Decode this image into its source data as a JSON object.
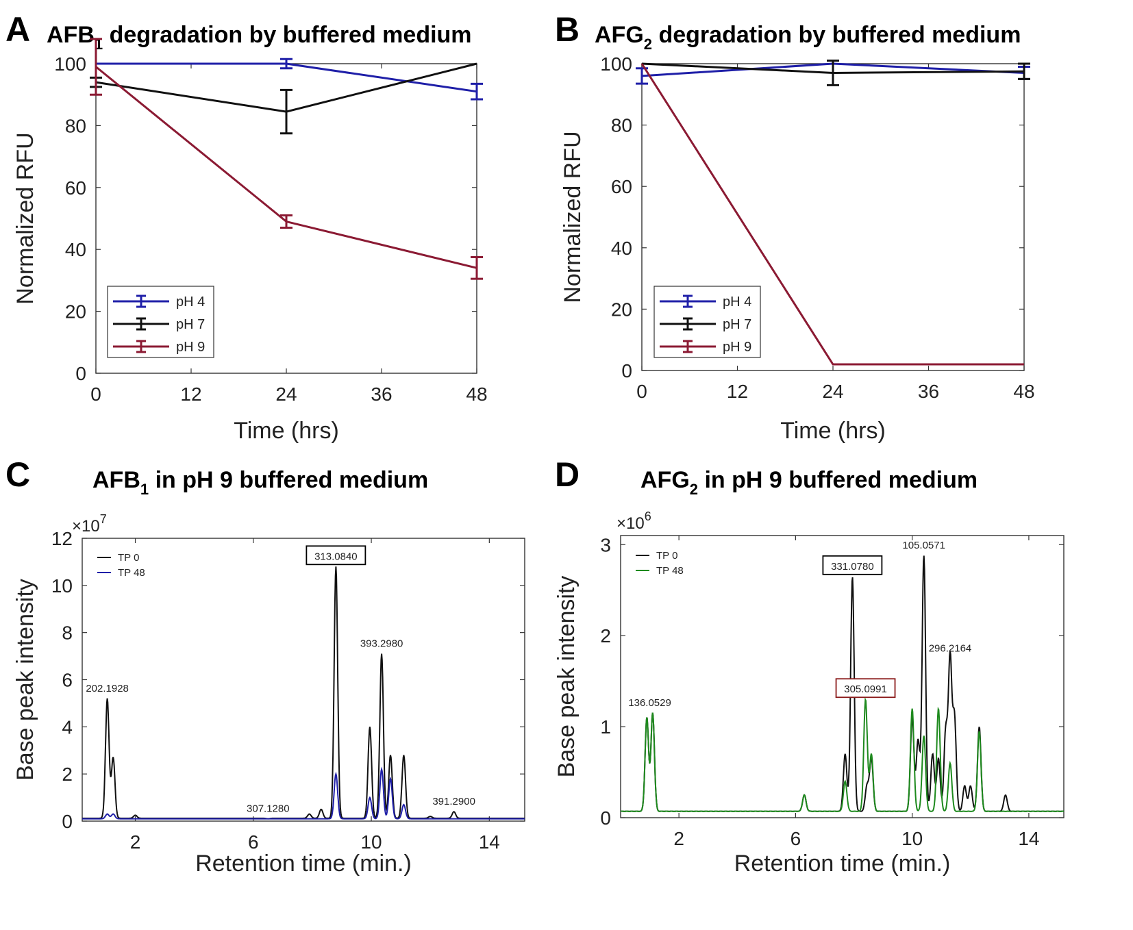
{
  "chart_data": [
    {
      "panel": "A",
      "type": "line",
      "title_main": "AFB",
      "title_sub": "1",
      "title_rest": " degradation by buffered medium",
      "xlabel": "Time (hrs)",
      "ylabel": "Normalized RFU",
      "xlim": [
        0,
        48
      ],
      "ylim": [
        0,
        100
      ],
      "xticks": [
        0,
        12,
        24,
        36,
        48
      ],
      "yticks": [
        0,
        20,
        40,
        60,
        80,
        100
      ],
      "x": [
        0,
        24,
        48
      ],
      "series": [
        {
          "name": "pH 4",
          "color": "#1f1fa8",
          "values": [
            100,
            100,
            91
          ],
          "err": [
            0,
            1.5,
            2.5
          ]
        },
        {
          "name": "pH 7",
          "color": "#111111",
          "values": [
            94,
            84.5,
            100
          ],
          "err": [
            1.5,
            7,
            0
          ]
        },
        {
          "name": "pH 9",
          "color": "#8b1a33",
          "values": [
            99,
            49,
            34
          ],
          "err": [
            9,
            2,
            3.5
          ]
        }
      ],
      "legend_position": "bottom-left"
    },
    {
      "panel": "B",
      "type": "line",
      "title_main": "AFG",
      "title_sub": "2",
      "title_rest": " degradation by buffered medium",
      "xlabel": "Time (hrs)",
      "ylabel": "Normalized RFU",
      "xlim": [
        0,
        48
      ],
      "ylim": [
        0,
        100
      ],
      "xticks": [
        0,
        12,
        24,
        36,
        48
      ],
      "yticks": [
        0,
        20,
        40,
        60,
        80,
        100
      ],
      "x": [
        0,
        24,
        48
      ],
      "series": [
        {
          "name": "pH 4",
          "color": "#1f1fa8",
          "values": [
            96,
            100,
            97
          ],
          "err": [
            2.5,
            0,
            2
          ]
        },
        {
          "name": "pH 7",
          "color": "#111111",
          "values": [
            100,
            97,
            97.5
          ],
          "err": [
            0,
            4,
            2.5
          ]
        },
        {
          "name": "pH 9",
          "color": "#8b1a33",
          "values": [
            100,
            2,
            2
          ],
          "err": [
            0,
            0,
            0
          ]
        }
      ],
      "legend_position": "bottom-left"
    },
    {
      "panel": "C",
      "type": "line",
      "title_main": "AFB",
      "title_sub": "1",
      "title_rest": " in pH 9 buffered medium",
      "xlabel": "Retention time (min.)",
      "ylabel": "Base peak intensity",
      "exponent_base": "×10",
      "exponent_power": "7",
      "xlim": [
        0.2,
        15.2
      ],
      "ylim": [
        0,
        12
      ],
      "xticks": [
        2,
        6,
        10,
        14
      ],
      "yticks": [
        0,
        2,
        4,
        6,
        8,
        10,
        12
      ],
      "legend_position": "top-left",
      "baseline": {
        "TP 0": 0.12,
        "TP 48": 0.1
      },
      "series": [
        {
          "name": "TP 0",
          "color": "#111111",
          "peaks": [
            [
              1.05,
              5.2
            ],
            [
              1.25,
              2.7
            ],
            [
              2.0,
              0.25
            ],
            [
              6.5,
              0.1
            ],
            [
              7.9,
              0.3
            ],
            [
              8.3,
              0.5
            ],
            [
              8.8,
              10.8
            ],
            [
              9.95,
              4.0
            ],
            [
              10.35,
              7.1
            ],
            [
              10.65,
              2.8
            ],
            [
              11.1,
              2.8
            ],
            [
              12.0,
              0.2
            ],
            [
              12.8,
              0.4
            ]
          ]
        },
        {
          "name": "TP 48",
          "color": "#1f1fa8",
          "peaks": [
            [
              1.05,
              0.3
            ],
            [
              1.25,
              0.3
            ],
            [
              8.8,
              2.0
            ],
            [
              9.95,
              1.0
            ],
            [
              10.35,
              2.2
            ],
            [
              10.65,
              1.8
            ],
            [
              11.1,
              0.7
            ]
          ]
        }
      ],
      "annotations": [
        {
          "label": "202.1928",
          "x": 1.05,
          "y": 5.2,
          "boxed": false
        },
        {
          "label": "313.0840",
          "x": 8.8,
          "y": 10.8,
          "boxed": true,
          "box_color": "#000000"
        },
        {
          "label": "393.2980",
          "x": 10.35,
          "y": 7.1,
          "boxed": false
        },
        {
          "label": "307.1280",
          "x": 6.5,
          "y": 0.1,
          "boxed": false
        },
        {
          "label": "391.2900",
          "x": 12.8,
          "y": 0.4,
          "boxed": false
        }
      ]
    },
    {
      "panel": "D",
      "type": "line",
      "title_main": "AFG",
      "title_sub": "2",
      "title_rest": " in pH 9 buffered medium",
      "xlabel": "Retention time (min.)",
      "ylabel": "Base peak intensity",
      "exponent_base": "×10",
      "exponent_power": "6",
      "xlim": [
        0,
        15.2
      ],
      "ylim": [
        0,
        3.1
      ],
      "xticks": [
        2,
        6,
        10,
        14
      ],
      "yticks": [
        0,
        1,
        2,
        3
      ],
      "legend_position": "top-left",
      "baseline": {
        "TP 0": 0.07,
        "TP 48": 0.07
      },
      "series": [
        {
          "name": "TP 0",
          "color": "#111111",
          "peaks": [
            [
              0.9,
              1.1
            ],
            [
              1.1,
              1.15
            ],
            [
              6.3,
              0.25
            ],
            [
              7.7,
              0.7
            ],
            [
              7.95,
              2.65
            ],
            [
              8.45,
              0.35
            ],
            [
              8.6,
              0.65
            ],
            [
              10.0,
              1.1
            ],
            [
              10.2,
              0.85
            ],
            [
              10.4,
              2.88
            ],
            [
              10.7,
              0.7
            ],
            [
              10.9,
              0.65
            ],
            [
              11.15,
              0.95
            ],
            [
              11.3,
              1.75
            ],
            [
              11.45,
              1.1
            ],
            [
              11.8,
              0.35
            ],
            [
              12.0,
              0.35
            ],
            [
              12.3,
              1.0
            ],
            [
              13.2,
              0.25
            ]
          ]
        },
        {
          "name": "TP 48",
          "color": "#1e8a1e",
          "peaks": [
            [
              0.9,
              1.1
            ],
            [
              1.1,
              1.15
            ],
            [
              6.3,
              0.25
            ],
            [
              7.7,
              0.4
            ],
            [
              8.4,
              1.3
            ],
            [
              8.6,
              0.7
            ],
            [
              10.0,
              1.2
            ],
            [
              10.4,
              0.9
            ],
            [
              10.9,
              1.2
            ],
            [
              11.3,
              0.6
            ],
            [
              12.3,
              0.95
            ]
          ]
        }
      ],
      "annotations": [
        {
          "label": "136.0529",
          "x": 1.0,
          "y": 1.15,
          "boxed": false
        },
        {
          "label": "331.0780",
          "x": 7.95,
          "y": 2.65,
          "boxed": true,
          "box_color": "#000000"
        },
        {
          "label": "105.0571",
          "x": 10.4,
          "y": 2.88,
          "boxed": false
        },
        {
          "label": "296.2164",
          "x": 11.3,
          "y": 1.75,
          "boxed": false
        },
        {
          "label": "305.0991",
          "x": 8.4,
          "y": 1.3,
          "boxed": true,
          "box_color": "#8b1a1a"
        }
      ]
    }
  ]
}
